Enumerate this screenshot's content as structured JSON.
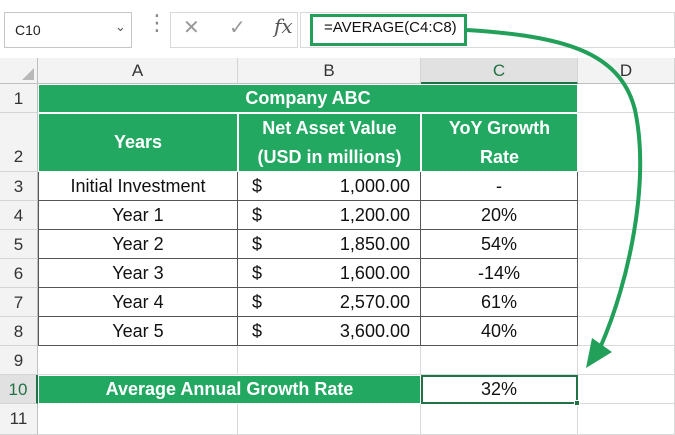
{
  "formula_bar": {
    "name_box": "C10",
    "cancel_icon": "✕",
    "enter_icon": "✓",
    "fx_label": "fx",
    "formula": "=AVERAGE(C4:C8)"
  },
  "columns": [
    "A",
    "B",
    "C",
    "D"
  ],
  "rows": [
    "1",
    "2",
    "3",
    "4",
    "5",
    "6",
    "7",
    "8",
    "9",
    "10",
    "11"
  ],
  "table": {
    "title": "Company ABC",
    "header_years": "Years",
    "header_nav_line1": "Net Asset Value",
    "header_nav_line2": "(USD in millions)",
    "header_yoy_line1": "YoY Growth",
    "header_yoy_line2": "Rate",
    "currency_symbol": "$",
    "rows": [
      {
        "year": "Initial Investment",
        "value": "1,000.00",
        "growth": "-"
      },
      {
        "year": "Year 1",
        "value": "1,200.00",
        "growth": "20%"
      },
      {
        "year": "Year 2",
        "value": "1,850.00",
        "growth": "54%"
      },
      {
        "year": "Year 3",
        "value": "1,600.00",
        "growth": "-14%"
      },
      {
        "year": "Year 4",
        "value": "2,570.00",
        "growth": "61%"
      },
      {
        "year": "Year 5",
        "value": "3,600.00",
        "growth": "40%"
      }
    ],
    "avg_label": "Average Annual Growth Rate",
    "avg_value": "32%"
  },
  "colors": {
    "accent": "#22a861",
    "selection": "#217346",
    "arrow": "#22a05a"
  }
}
